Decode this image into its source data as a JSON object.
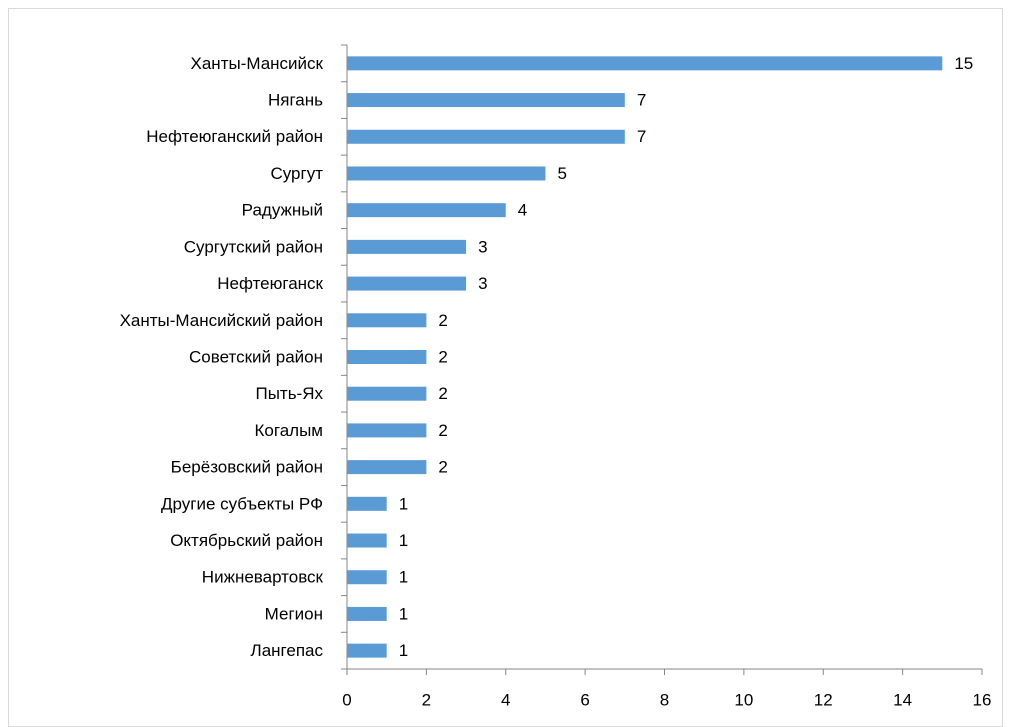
{
  "chart_data": {
    "type": "bar",
    "orientation": "horizontal",
    "categories": [
      "Ханты-Мансийск",
      "Нягань",
      "Нефтеюганский район",
      "Сургут",
      "Радужный",
      "Сургутский район",
      "Нефтеюганск",
      "Ханты-Мансийский район",
      "Советский район",
      "Пыть-Ях",
      "Когалым",
      "Берёзовский район",
      "Другие субъекты РФ",
      "Октябрьский район",
      "Нижневартовск",
      "Мегион",
      "Лангепас"
    ],
    "values": [
      15,
      7,
      7,
      5,
      4,
      3,
      3,
      2,
      2,
      2,
      2,
      2,
      1,
      1,
      1,
      1,
      1
    ],
    "color": "#5b9bd5",
    "xlim": [
      0,
      16
    ],
    "xticks": [
      0,
      2,
      4,
      6,
      8,
      10,
      12,
      14,
      16
    ],
    "grid": false
  }
}
